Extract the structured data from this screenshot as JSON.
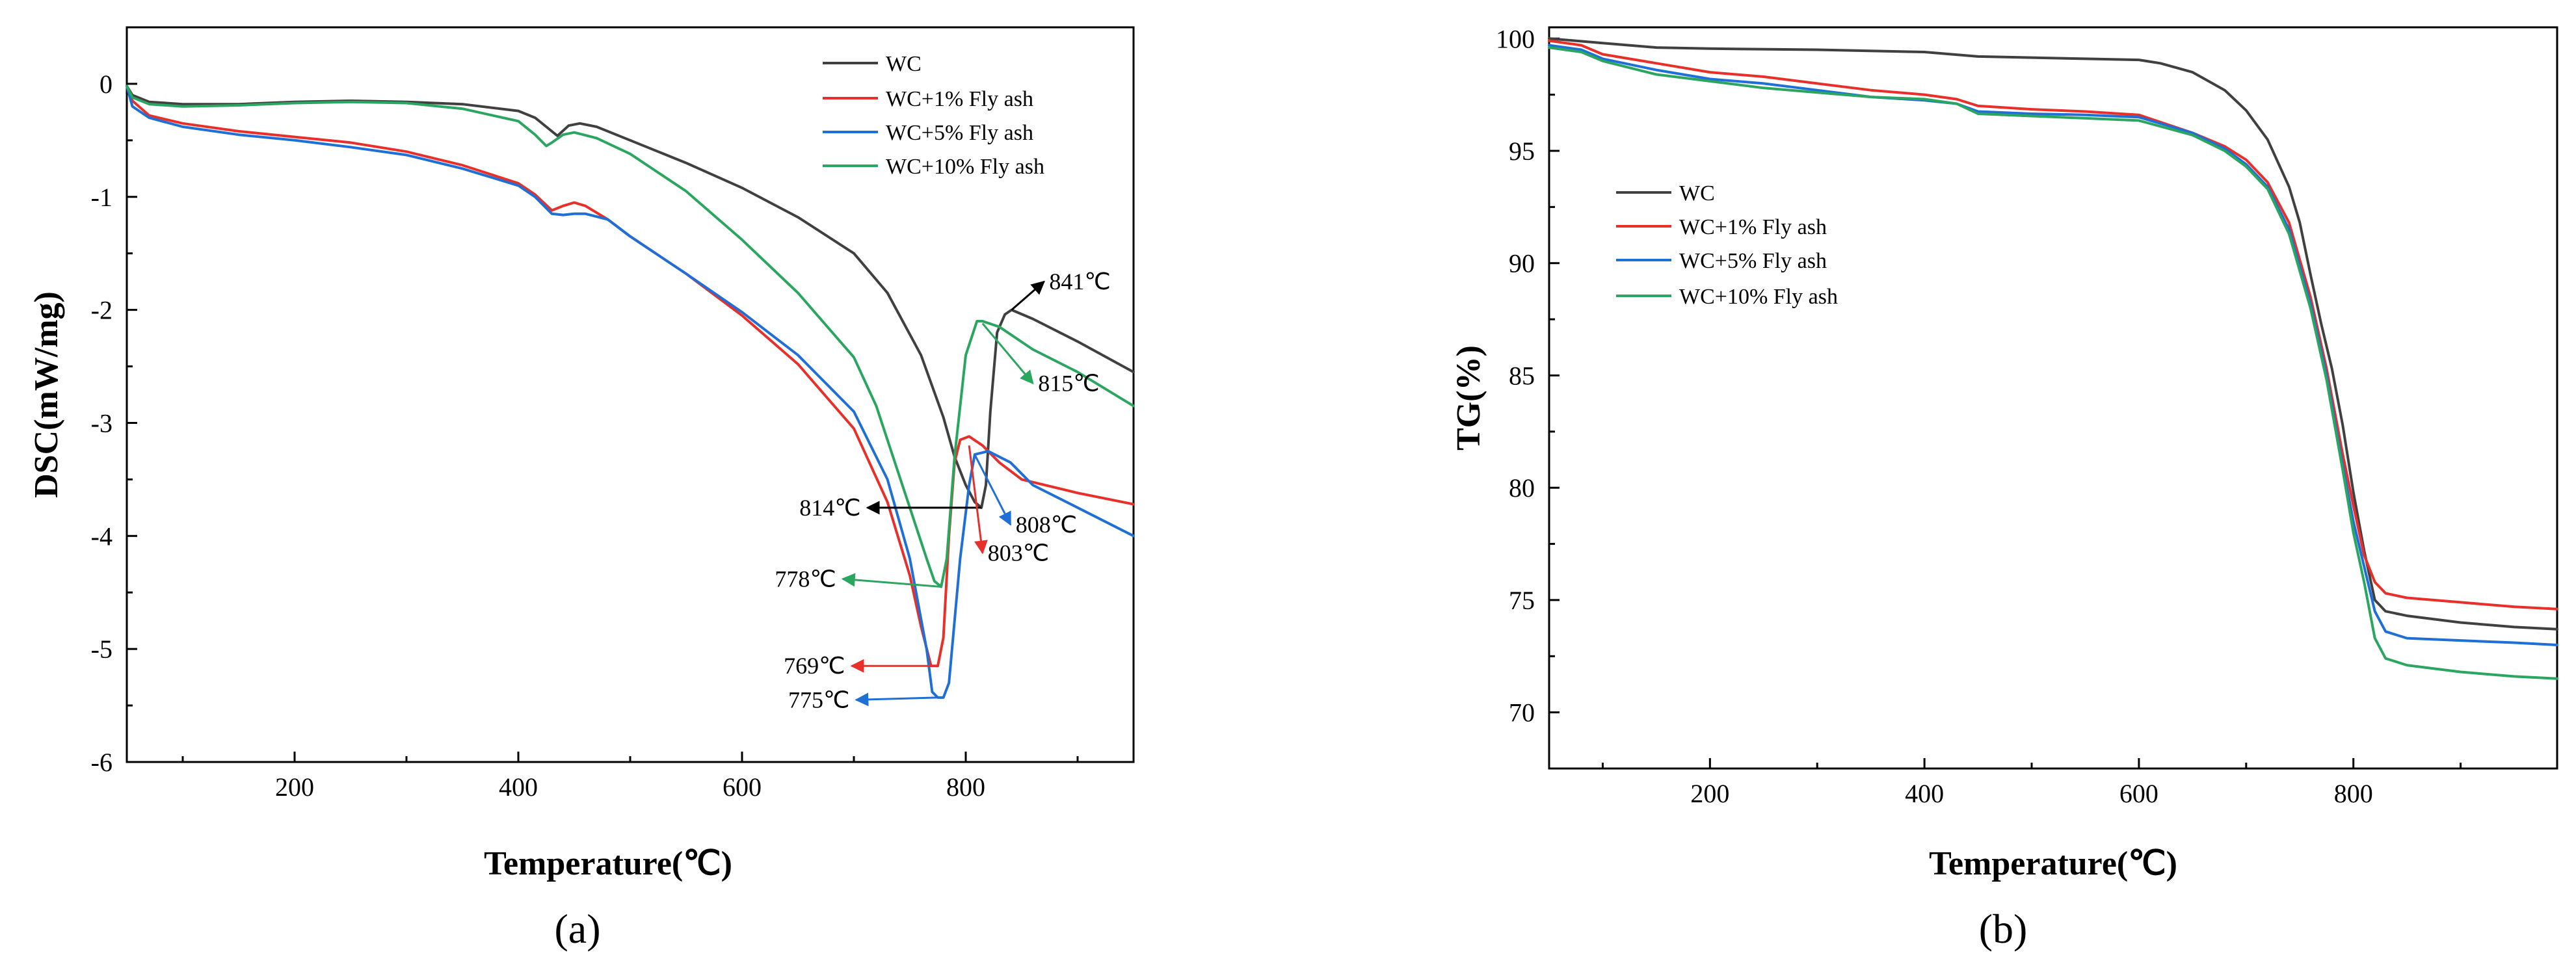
{
  "chart_data": [
    {
      "type": "line",
      "panel_label": "(a)",
      "xlabel": "Temperature(℃)",
      "ylabel": "DSC(mW/mg)",
      "xlim": [
        50,
        950
      ],
      "ylim": [
        -6,
        0.5
      ],
      "xticks": [
        200,
        400,
        600,
        800
      ],
      "yticks": [
        0,
        -1,
        -2,
        -3,
        -4,
        -5,
        -6
      ],
      "legend_position": "top-right",
      "series": [
        {
          "name": "WC",
          "color": "#404040",
          "x": [
            50,
            55,
            70,
            100,
            150,
            200,
            250,
            300,
            350,
            400,
            415,
            425,
            435,
            445,
            455,
            470,
            500,
            550,
            600,
            650,
            700,
            730,
            760,
            780,
            790,
            800,
            808,
            814,
            818,
            822,
            828,
            835,
            841,
            860,
            900,
            950
          ],
          "y": [
            -0.02,
            -0.1,
            -0.16,
            -0.18,
            -0.18,
            -0.16,
            -0.15,
            -0.16,
            -0.18,
            -0.24,
            -0.3,
            -0.38,
            -0.46,
            -0.37,
            -0.35,
            -0.38,
            -0.5,
            -0.7,
            -0.92,
            -1.18,
            -1.5,
            -1.85,
            -2.4,
            -2.95,
            -3.3,
            -3.55,
            -3.7,
            -3.75,
            -3.55,
            -2.9,
            -2.2,
            -2.04,
            -2.0,
            -2.08,
            -2.28,
            -2.55
          ]
        },
        {
          "name": "WC+1% Fly ash",
          "color": "#e8302a",
          "x": [
            50,
            55,
            70,
            100,
            150,
            200,
            250,
            300,
            350,
            400,
            415,
            430,
            440,
            450,
            460,
            480,
            500,
            550,
            600,
            650,
            700,
            730,
            750,
            760,
            769,
            775,
            780,
            785,
            790,
            795,
            803,
            815,
            830,
            850,
            900,
            950
          ],
          "y": [
            -0.02,
            -0.15,
            -0.28,
            -0.35,
            -0.42,
            -0.47,
            -0.52,
            -0.6,
            -0.72,
            -0.88,
            -0.98,
            -1.12,
            -1.08,
            -1.05,
            -1.08,
            -1.2,
            -1.35,
            -1.68,
            -2.05,
            -2.48,
            -3.05,
            -3.7,
            -4.35,
            -4.8,
            -5.15,
            -5.15,
            -4.9,
            -4.0,
            -3.35,
            -3.15,
            -3.12,
            -3.2,
            -3.35,
            -3.5,
            -3.62,
            -3.72
          ]
        },
        {
          "name": "WC+5% Fly ash",
          "color": "#1f6fd6",
          "x": [
            50,
            55,
            70,
            100,
            150,
            200,
            250,
            300,
            350,
            400,
            415,
            430,
            440,
            450,
            460,
            480,
            500,
            550,
            600,
            650,
            700,
            730,
            750,
            765,
            770,
            775,
            780,
            785,
            795,
            803,
            808,
            820,
            840,
            860,
            900,
            950
          ],
          "y": [
            -0.02,
            -0.2,
            -0.3,
            -0.38,
            -0.45,
            -0.5,
            -0.56,
            -0.63,
            -0.75,
            -0.9,
            -1.0,
            -1.15,
            -1.16,
            -1.15,
            -1.15,
            -1.2,
            -1.35,
            -1.68,
            -2.02,
            -2.4,
            -2.9,
            -3.5,
            -4.2,
            -5.0,
            -5.38,
            -5.43,
            -5.43,
            -5.3,
            -4.2,
            -3.55,
            -3.28,
            -3.25,
            -3.35,
            -3.55,
            -3.75,
            -4.0
          ]
        },
        {
          "name": "WC+10% Fly ash",
          "color": "#2aa660",
          "x": [
            50,
            55,
            70,
            100,
            150,
            200,
            250,
            300,
            350,
            400,
            415,
            425,
            430,
            440,
            450,
            470,
            500,
            550,
            600,
            650,
            700,
            720,
            740,
            755,
            765,
            772,
            778,
            783,
            790,
            800,
            810,
            815,
            830,
            860,
            900,
            950
          ],
          "y": [
            -0.02,
            -0.12,
            -0.18,
            -0.2,
            -0.19,
            -0.17,
            -0.16,
            -0.17,
            -0.22,
            -0.33,
            -0.45,
            -0.55,
            -0.52,
            -0.45,
            -0.43,
            -0.48,
            -0.62,
            -0.95,
            -1.38,
            -1.85,
            -2.42,
            -2.85,
            -3.45,
            -3.9,
            -4.2,
            -4.4,
            -4.45,
            -4.2,
            -3.3,
            -2.4,
            -2.1,
            -2.1,
            -2.15,
            -2.35,
            -2.55,
            -2.85
          ]
        }
      ],
      "annotations": [
        {
          "text": "841℃",
          "color": "#000000",
          "x": 841,
          "y": -2.0,
          "tx": 870,
          "ty": -1.75
        },
        {
          "text": "815℃",
          "color": "#2aa660",
          "x": 815,
          "y": -2.12,
          "tx": 860,
          "ty": -2.65
        },
        {
          "text": "814℃",
          "color": "#000000",
          "x": 814,
          "y": -3.75,
          "tx": 712,
          "ty": -3.75
        },
        {
          "text": "808℃",
          "color": "#1f6fd6",
          "x": 808,
          "y": -3.28,
          "tx": 840,
          "ty": -3.9
        },
        {
          "text": "803℃",
          "color": "#e8302a",
          "x": 803,
          "y": -3.2,
          "tx": 815,
          "ty": -4.15
        },
        {
          "text": "778℃",
          "color": "#2aa660",
          "x": 778,
          "y": -4.45,
          "tx": 690,
          "ty": -4.38
        },
        {
          "text": "769℃",
          "color": "#e8302a",
          "x": 769,
          "y": -5.15,
          "tx": 698,
          "ty": -5.15
        },
        {
          "text": "775℃",
          "color": "#1f6fd6",
          "x": 775,
          "y": -5.43,
          "tx": 702,
          "ty": -5.45
        }
      ]
    },
    {
      "type": "line",
      "panel_label": "(b)",
      "xlabel": "Temperature(℃)",
      "ylabel": "TG(%)",
      "xlim": [
        50,
        990
      ],
      "ylim": [
        67.5,
        100.5
      ],
      "xticks": [
        200,
        400,
        600,
        800
      ],
      "yticks": [
        100,
        95,
        90,
        85,
        80,
        75,
        70
      ],
      "legend_position": "upper-left",
      "series": [
        {
          "name": "WC",
          "color": "#404040",
          "x": [
            50,
            100,
            150,
            200,
            300,
            400,
            450,
            500,
            550,
            600,
            620,
            650,
            680,
            700,
            720,
            740,
            750,
            760,
            770,
            780,
            790,
            800,
            810,
            820,
            830,
            850,
            900,
            950,
            990
          ],
          "y": [
            100.0,
            99.8,
            99.6,
            99.55,
            99.5,
            99.4,
            99.2,
            99.15,
            99.1,
            99.05,
            98.9,
            98.5,
            97.7,
            96.8,
            95.5,
            93.4,
            91.8,
            89.5,
            87.3,
            85.3,
            82.8,
            79.8,
            77.2,
            75.0,
            74.5,
            74.3,
            74.0,
            73.8,
            73.7
          ]
        },
        {
          "name": "WC+1% Fly ash",
          "color": "#e8302a",
          "x": [
            50,
            80,
            100,
            150,
            200,
            250,
            300,
            350,
            400,
            430,
            450,
            500,
            550,
            600,
            650,
            680,
            700,
            720,
            740,
            760,
            775,
            790,
            800,
            810,
            820,
            830,
            850,
            900,
            950,
            990
          ],
          "y": [
            99.9,
            99.7,
            99.3,
            98.9,
            98.5,
            98.3,
            98.0,
            97.7,
            97.5,
            97.3,
            97.0,
            96.85,
            96.75,
            96.6,
            95.8,
            95.2,
            94.6,
            93.6,
            91.8,
            88.5,
            85.3,
            81.5,
            79.2,
            77.0,
            75.8,
            75.3,
            75.1,
            74.9,
            74.7,
            74.6
          ]
        },
        {
          "name": "WC+5% Fly ash",
          "color": "#1f6fd6",
          "x": [
            50,
            80,
            100,
            150,
            200,
            250,
            300,
            350,
            400,
            430,
            450,
            500,
            550,
            600,
            650,
            680,
            700,
            720,
            740,
            760,
            775,
            790,
            800,
            810,
            820,
            830,
            850,
            900,
            950,
            990
          ],
          "y": [
            99.7,
            99.5,
            99.1,
            98.6,
            98.2,
            98.0,
            97.7,
            97.4,
            97.25,
            97.1,
            96.75,
            96.65,
            96.6,
            96.5,
            95.8,
            95.1,
            94.4,
            93.4,
            91.5,
            88.2,
            85.0,
            81.0,
            78.5,
            76.5,
            74.5,
            73.6,
            73.3,
            73.2,
            73.1,
            73.0
          ]
        },
        {
          "name": "WC+10% Fly ash",
          "color": "#2aa660",
          "x": [
            50,
            80,
            100,
            150,
            200,
            250,
            300,
            350,
            400,
            430,
            450,
            500,
            550,
            600,
            650,
            680,
            700,
            720,
            740,
            760,
            775,
            790,
            800,
            810,
            820,
            830,
            850,
            900,
            950,
            990
          ],
          "y": [
            99.6,
            99.4,
            99.0,
            98.4,
            98.1,
            97.8,
            97.6,
            97.4,
            97.3,
            97.1,
            96.65,
            96.55,
            96.45,
            96.35,
            95.7,
            95.0,
            94.3,
            93.3,
            91.3,
            88.0,
            84.8,
            80.8,
            78.0,
            75.8,
            73.3,
            72.4,
            72.1,
            71.8,
            71.6,
            71.5
          ]
        }
      ]
    }
  ]
}
